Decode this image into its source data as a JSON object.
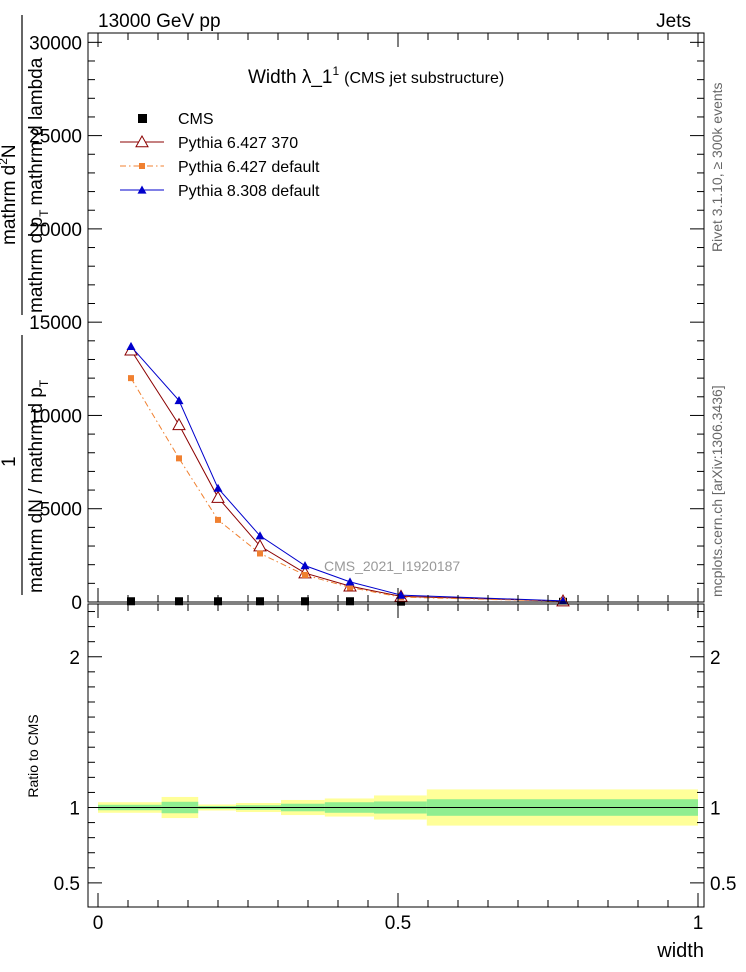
{
  "header": {
    "left": "13000 GeV pp",
    "right": "Jets"
  },
  "side_labels": {
    "rivet": "Rivet 3.1.10, ≥ 300k events",
    "mcplots": "mcplots.cern.ch [arXiv:1306.3436]"
  },
  "chart_data": [
    {
      "type": "line",
      "title": "Width λ_1",
      "title_sup": "1",
      "title_suffix": "(CMS jet substructure)",
      "watermark": "CMS_2021_I1920187",
      "ylabel": {
        "left_numer": "1",
        "left_denom": "mathrm dN / mathrm d p",
        "left_denom_sub": "T",
        "right_numer": "mathrm d",
        "right_numer_sup": "2",
        "right_numer_tail": "N",
        "right_denom": "mathrm d p",
        "right_denom_sub": "T",
        "right_denom_tail": "mathrm d lambda"
      },
      "xlim": [
        0,
        1
      ],
      "ylim": [
        0,
        30500
      ],
      "yticks": [
        0,
        5000,
        10000,
        15000,
        20000,
        25000,
        30000
      ],
      "ytick_labels": [
        "0",
        "5000",
        "10000",
        "15000",
        "20000",
        "25000",
        "30000"
      ],
      "legend_position": "top-left",
      "series": [
        {
          "name": "CMS",
          "style": "marker-square",
          "color": "#000000",
          "x": [
            0.055,
            0.135,
            0.2,
            0.27,
            0.345,
            0.42,
            0.505,
            0.775
          ],
          "y": [
            40,
            40,
            40,
            40,
            40,
            40,
            20,
            10
          ]
        },
        {
          "name": "Pythia 6.427 370",
          "style": "line-open-triangle",
          "color": "#8b0000",
          "x": [
            0.055,
            0.135,
            0.2,
            0.27,
            0.345,
            0.42,
            0.505,
            0.775
          ],
          "y": [
            13500,
            9500,
            5600,
            3000,
            1550,
            850,
            300,
            50
          ]
        },
        {
          "name": "Pythia 6.427 default",
          "style": "dashdot-square",
          "color": "#f08030",
          "x": [
            0.055,
            0.135,
            0.2,
            0.27,
            0.345,
            0.42,
            0.505,
            0.775
          ],
          "y": [
            12000,
            7700,
            4400,
            2600,
            1450,
            780,
            260,
            40
          ]
        },
        {
          "name": "Pythia 8.308 default",
          "style": "line-filled-triangle",
          "color": "#0000cc",
          "x": [
            0.055,
            0.135,
            0.2,
            0.27,
            0.345,
            0.42,
            0.505,
            0.775
          ],
          "y": [
            13700,
            10800,
            6100,
            3550,
            1950,
            1080,
            370,
            60
          ]
        }
      ]
    },
    {
      "type": "area",
      "ylabel": "Ratio to CMS",
      "xlabel": "width",
      "xlim": [
        0,
        1
      ],
      "ylim": [
        0.34,
        2.35
      ],
      "yticks": [
        0.5,
        1,
        2
      ],
      "ytick_labels": [
        "0.5",
        "1",
        "2"
      ],
      "xticks": [
        0,
        0.5,
        1
      ],
      "xtick_labels": [
        "0",
        "0.5",
        "1"
      ],
      "reference": 1,
      "bins": [
        {
          "x0": 0.0,
          "x1": 0.106,
          "green": 0.018,
          "yellow": 0.035
        },
        {
          "x0": 0.106,
          "x1": 0.167,
          "green": 0.038,
          "yellow": 0.07
        },
        {
          "x0": 0.167,
          "x1": 0.23,
          "green": 0.01,
          "yellow": 0.02
        },
        {
          "x0": 0.23,
          "x1": 0.305,
          "green": 0.015,
          "yellow": 0.03
        },
        {
          "x0": 0.305,
          "x1": 0.378,
          "green": 0.025,
          "yellow": 0.05
        },
        {
          "x0": 0.378,
          "x1": 0.46,
          "green": 0.035,
          "yellow": 0.06
        },
        {
          "x0": 0.46,
          "x1": 0.548,
          "green": 0.04,
          "yellow": 0.08
        },
        {
          "x0": 0.548,
          "x1": 1.0,
          "green": 0.055,
          "yellow": 0.12
        }
      ]
    }
  ],
  "colors": {
    "green": "#90ee90",
    "yellow": "#ffff99"
  }
}
